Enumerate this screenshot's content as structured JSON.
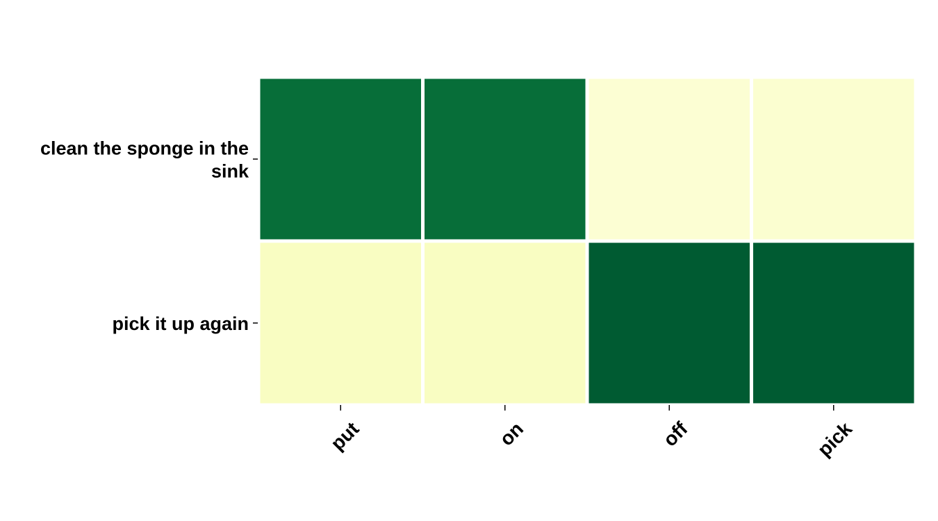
{
  "chart_data": {
    "type": "heatmap",
    "title": "",
    "xlabel": "",
    "ylabel": "",
    "x_categories": [
      "put",
      "on",
      "off",
      "pick"
    ],
    "y_categories": [
      [
        "clean the sponge in the",
        "sink"
      ],
      [
        "pick it up again"
      ]
    ],
    "values": [
      [
        0.85,
        0.85,
        0.05,
        0.06
      ],
      [
        0.1,
        0.1,
        0.92,
        0.92
      ]
    ],
    "value_range": [
      0,
      1
    ],
    "colormap": "YlGn",
    "colormap_stops": [
      "#ffffe5",
      "#f7fcb9",
      "#d9f0a3",
      "#addd8e",
      "#78c679",
      "#41ab5d",
      "#238443",
      "#006837",
      "#004529"
    ],
    "cell_border_color": "#ffffff",
    "colorbar": false
  }
}
